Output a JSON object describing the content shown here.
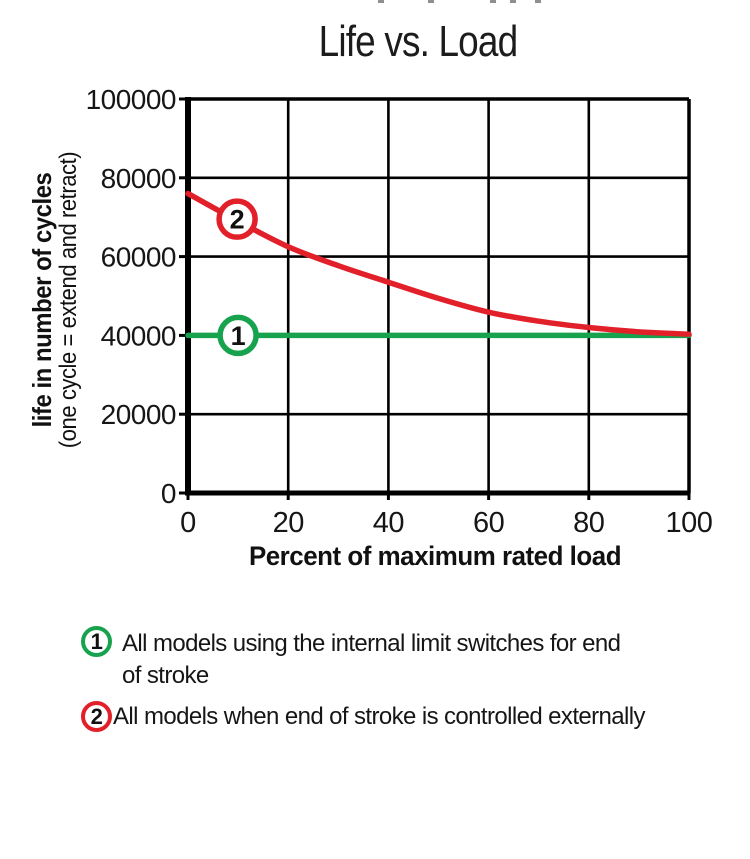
{
  "page": {
    "background": "#ffffff",
    "top_clipped_marks": [
      378,
      428,
      490,
      510,
      535
    ]
  },
  "title": "Life vs. Load",
  "chart_data": {
    "type": "line",
    "title": "Life vs. Load",
    "xlabel": "Percent of maximum rated load",
    "ylabel_bold": "life in number of cycles",
    "ylabel_sub": "(one cycle = extend and retract)",
    "xlim": [
      0,
      100
    ],
    "ylim": [
      0,
      100000
    ],
    "x_ticks": [
      0,
      20,
      40,
      60,
      80,
      100
    ],
    "y_ticks": [
      0,
      20000,
      40000,
      60000,
      80000,
      100000
    ],
    "grid": true,
    "axis_color": "#000000",
    "series": [
      {
        "id": "1",
        "label": "All models using the internal limit switches for end of stroke",
        "color": "#17A24E",
        "x": [
          0,
          100
        ],
        "y": [
          40000,
          40000
        ],
        "marker": {
          "x": 10,
          "y": 40000,
          "label": "1"
        }
      },
      {
        "id": "2",
        "label": "All models when end of stroke is controlled externally",
        "color": "#E2202A",
        "x": [
          0,
          10,
          20,
          30,
          40,
          50,
          60,
          70,
          80,
          90,
          100
        ],
        "y": [
          76000,
          69000,
          62500,
          57700,
          53500,
          49400,
          45900,
          43600,
          42000,
          40900,
          40300
        ],
        "marker": {
          "x": 9.8,
          "y": 69500,
          "label": "2"
        }
      }
    ]
  },
  "legend": {
    "items": [
      {
        "number": "1",
        "color": "#17A24E",
        "lines": [
          "All models using the internal limit switches for end",
          "of stroke"
        ]
      },
      {
        "number": "2",
        "color": "#E2202A",
        "lines": [
          "All models when end of stroke is controlled externally"
        ]
      }
    ]
  }
}
